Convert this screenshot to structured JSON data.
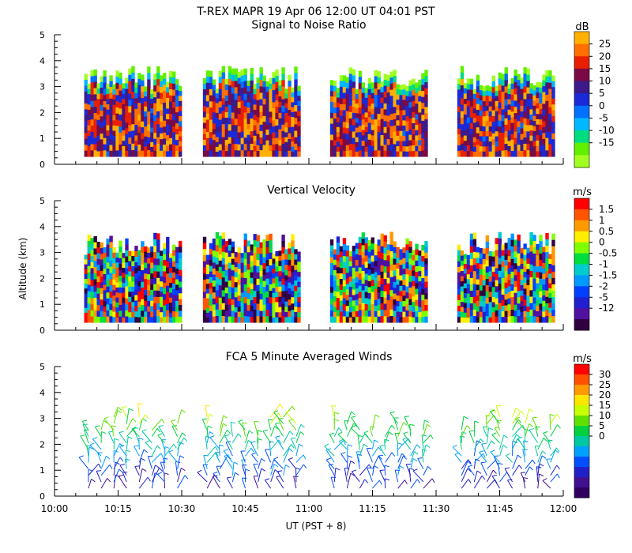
{
  "figure": {
    "title": "T-REX  MAPR 19 Apr 06   12:00 UT  04:01   PST",
    "x_axis_label": "UT  (PST + 8)",
    "y_axis_label": "Altitude (km)"
  },
  "chart_data": [
    {
      "type": "heatmap",
      "title": "Signal to Noise Ratio",
      "units": "dB",
      "xlim": [
        "10:00",
        "12:00"
      ],
      "ylim": [
        0,
        5
      ],
      "yticks": [
        "0",
        "1",
        "2",
        "3",
        "4",
        "5"
      ],
      "xticks": [
        "10:00",
        "10:15",
        "10:30",
        "10:45",
        "11:00",
        "11:15",
        "11:30",
        "11:45",
        "12:00"
      ],
      "data_segments_ut": [
        [
          "10:07",
          "10:30"
        ],
        [
          "10:35",
          "10:58"
        ],
        [
          "11:05",
          "11:28"
        ],
        [
          "11:35",
          "11:58"
        ]
      ],
      "data_altitude_range_km": [
        0.3,
        3.5
      ],
      "colorbar": {
        "labels": [
          "25",
          "20",
          "15",
          "10",
          "5",
          "0",
          "-5",
          "-10",
          "-15"
        ],
        "colors": [
          "#ffb000",
          "#ff7000",
          "#e82000",
          "#7a0a45",
          "#3c1a8a",
          "#1a2ad8",
          "#0070ff",
          "#00b8ff",
          "#00dd80",
          "#60f000",
          "#a0ff20"
        ]
      }
    },
    {
      "type": "heatmap",
      "title": "Vertical Velocity",
      "units": "m/s",
      "xlim": [
        "10:00",
        "12:00"
      ],
      "ylim": [
        0,
        5
      ],
      "yticks": [
        "0",
        "1",
        "2",
        "3",
        "4",
        "5"
      ],
      "xticks": [
        "10:00",
        "10:15",
        "10:30",
        "10:45",
        "11:00",
        "11:15",
        "11:30",
        "11:45",
        "12:00"
      ],
      "data_segments_ut": [
        [
          "10:07",
          "10:30"
        ],
        [
          "10:35",
          "10:58"
        ],
        [
          "11:05",
          "11:28"
        ],
        [
          "11:35",
          "11:58"
        ]
      ],
      "data_altitude_range_km": [
        0.3,
        3.5
      ],
      "colorbar": {
        "labels": [
          "1.5",
          "1",
          "0.5",
          "0",
          "-0.5",
          "-1",
          "-1.5",
          "-2",
          "-5",
          "-12"
        ],
        "colors": [
          "#ff0000",
          "#ff5500",
          "#ff9900",
          "#ffee00",
          "#80ff00",
          "#00dd40",
          "#00cccc",
          "#0099ff",
          "#0040ff",
          "#2020d0",
          "#5010a0",
          "#300040"
        ]
      }
    },
    {
      "type": "scatter",
      "title": "FCA 5 Minute Averaged Winds",
      "units": "m/s",
      "xlim": [
        "10:00",
        "12:00"
      ],
      "ylim": [
        0,
        5
      ],
      "yticks": [
        "0",
        "1",
        "2",
        "3",
        "4",
        "5"
      ],
      "xticks": [
        "10:00",
        "10:15",
        "10:30",
        "10:45",
        "11:00",
        "11:15",
        "11:30",
        "11:45",
        "12:00"
      ],
      "data_segments_ut": [
        [
          "10:07",
          "10:30"
        ],
        [
          "10:35",
          "10:58"
        ],
        [
          "11:05",
          "11:28"
        ],
        [
          "11:35",
          "11:58"
        ]
      ],
      "colorbar": {
        "labels": [
          "30",
          "25",
          "20",
          "15",
          "10",
          "5",
          "0"
        ],
        "colors": [
          "#ff0000",
          "#ff5000",
          "#ff9a00",
          "#ffe600",
          "#c8ff00",
          "#60e000",
          "#00d040",
          "#00c8a0",
          "#00a0ff",
          "#0050ff",
          "#2020c8",
          "#401090",
          "#300060"
        ]
      }
    }
  ]
}
